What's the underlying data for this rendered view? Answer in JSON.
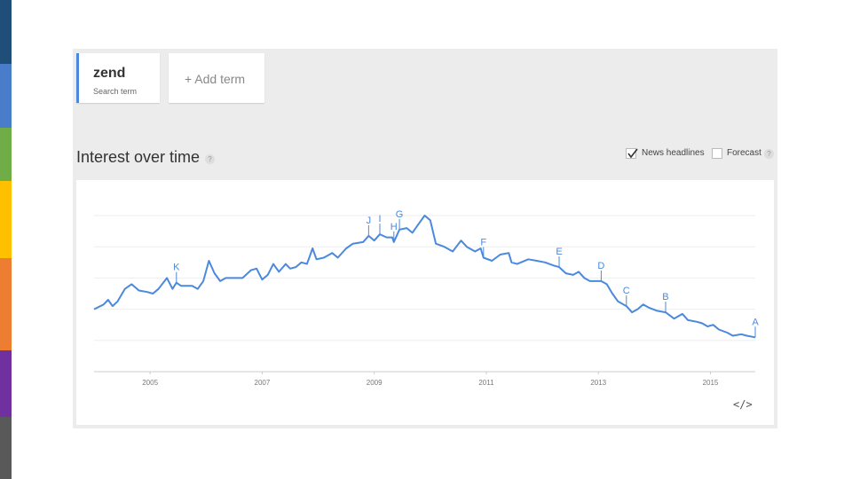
{
  "stripes": [
    {
      "color": "#1f4e79"
    },
    {
      "color": "#4a7dc9"
    },
    {
      "color": "#70ad47"
    },
    {
      "color": "#ffc000"
    },
    {
      "color": "#ed7d31"
    },
    {
      "color": "#7030a0"
    },
    {
      "color": "#595959"
    }
  ],
  "terms": {
    "term_name": "zend",
    "term_sub": "Search term",
    "add_label": "+ Add term"
  },
  "section": {
    "title": "Interest over time",
    "help_glyph": "?"
  },
  "options": {
    "news_label": "News headlines",
    "news_checked": true,
    "forecast_label": "Forecast",
    "forecast_checked": false,
    "help_glyph": "?"
  },
  "embed": {
    "label": "</>"
  },
  "chart_data": {
    "type": "line",
    "title": "",
    "xlabel": "",
    "ylabel": "",
    "x_ticks": [
      "2005",
      "2007",
      "2009",
      "2011",
      "2013",
      "2015"
    ],
    "xlim": [
      2004.0,
      2015.8
    ],
    "ylim": [
      0,
      100
    ],
    "grid": true,
    "series_color": "#4a89dc",
    "series": [
      {
        "values": [
          [
            2004.0,
            40
          ],
          [
            2004.17,
            43
          ],
          [
            2004.25,
            46
          ],
          [
            2004.33,
            42
          ],
          [
            2004.42,
            45
          ],
          [
            2004.55,
            53
          ],
          [
            2004.67,
            56
          ],
          [
            2004.8,
            52
          ],
          [
            2004.95,
            51
          ],
          [
            2005.05,
            50
          ],
          [
            2005.15,
            53
          ],
          [
            2005.3,
            60
          ],
          [
            2005.4,
            53
          ],
          [
            2005.47,
            57
          ],
          [
            2005.55,
            55
          ],
          [
            2005.75,
            55
          ],
          [
            2005.85,
            53
          ],
          [
            2005.95,
            58
          ],
          [
            2006.05,
            71
          ],
          [
            2006.15,
            63
          ],
          [
            2006.25,
            58
          ],
          [
            2006.35,
            60
          ],
          [
            2006.55,
            60
          ],
          [
            2006.65,
            60
          ],
          [
            2006.8,
            65
          ],
          [
            2006.9,
            66
          ],
          [
            2007.0,
            59
          ],
          [
            2007.1,
            62
          ],
          [
            2007.2,
            69
          ],
          [
            2007.3,
            64
          ],
          [
            2007.42,
            69
          ],
          [
            2007.5,
            66
          ],
          [
            2007.6,
            67
          ],
          [
            2007.7,
            70
          ],
          [
            2007.8,
            69
          ],
          [
            2007.9,
            79
          ],
          [
            2007.97,
            72
          ],
          [
            2008.1,
            73
          ],
          [
            2008.25,
            76
          ],
          [
            2008.35,
            73
          ],
          [
            2008.5,
            79
          ],
          [
            2008.62,
            82
          ],
          [
            2008.8,
            83
          ],
          [
            2008.9,
            87
          ],
          [
            2009.0,
            84
          ],
          [
            2009.1,
            88
          ],
          [
            2009.22,
            86
          ],
          [
            2009.32,
            86
          ],
          [
            2009.35,
            83
          ],
          [
            2009.45,
            91
          ],
          [
            2009.58,
            92
          ],
          [
            2009.68,
            89
          ],
          [
            2009.78,
            94
          ],
          [
            2009.9,
            100
          ],
          [
            2010.0,
            97
          ],
          [
            2010.1,
            82
          ],
          [
            2010.25,
            80
          ],
          [
            2010.4,
            77
          ],
          [
            2010.55,
            84
          ],
          [
            2010.65,
            80
          ],
          [
            2010.8,
            77
          ],
          [
            2010.9,
            79
          ],
          [
            2010.95,
            73
          ],
          [
            2011.1,
            71
          ],
          [
            2011.25,
            75
          ],
          [
            2011.4,
            76
          ],
          [
            2011.45,
            70
          ],
          [
            2011.55,
            69
          ],
          [
            2011.75,
            72
          ],
          [
            2011.9,
            71
          ],
          [
            2012.05,
            70
          ],
          [
            2012.2,
            68
          ],
          [
            2012.3,
            67
          ],
          [
            2012.42,
            63
          ],
          [
            2012.55,
            62
          ],
          [
            2012.65,
            64
          ],
          [
            2012.75,
            60
          ],
          [
            2012.85,
            58
          ],
          [
            2013.05,
            58
          ],
          [
            2013.15,
            56
          ],
          [
            2013.25,
            50
          ],
          [
            2013.35,
            45
          ],
          [
            2013.5,
            42
          ],
          [
            2013.6,
            38
          ],
          [
            2013.7,
            40
          ],
          [
            2013.8,
            43
          ],
          [
            2013.9,
            41
          ],
          [
            2014.05,
            39
          ],
          [
            2014.2,
            38
          ],
          [
            2014.35,
            34
          ],
          [
            2014.5,
            37
          ],
          [
            2014.6,
            33
          ],
          [
            2014.75,
            32
          ],
          [
            2014.85,
            31
          ],
          [
            2014.95,
            29
          ],
          [
            2015.05,
            30
          ],
          [
            2015.15,
            27
          ],
          [
            2015.3,
            25
          ],
          [
            2015.4,
            23
          ],
          [
            2015.55,
            24
          ],
          [
            2015.65,
            23
          ],
          [
            2015.8,
            22
          ]
        ]
      }
    ],
    "annotations": [
      {
        "label": "K",
        "x": 2005.47,
        "y": 57
      },
      {
        "label": "J",
        "x": 2008.9,
        "y": 87
      },
      {
        "label": "I",
        "x": 2009.1,
        "y": 88
      },
      {
        "label": "H",
        "x": 2009.35,
        "y": 83
      },
      {
        "label": "G",
        "x": 2009.45,
        "y": 91
      },
      {
        "label": "F",
        "x": 2010.95,
        "y": 73
      },
      {
        "label": "E",
        "x": 2012.3,
        "y": 67
      },
      {
        "label": "D",
        "x": 2013.05,
        "y": 58
      },
      {
        "label": "C",
        "x": 2013.5,
        "y": 42
      },
      {
        "label": "B",
        "x": 2014.2,
        "y": 38
      },
      {
        "label": "A",
        "x": 2015.8,
        "y": 22
      }
    ]
  }
}
